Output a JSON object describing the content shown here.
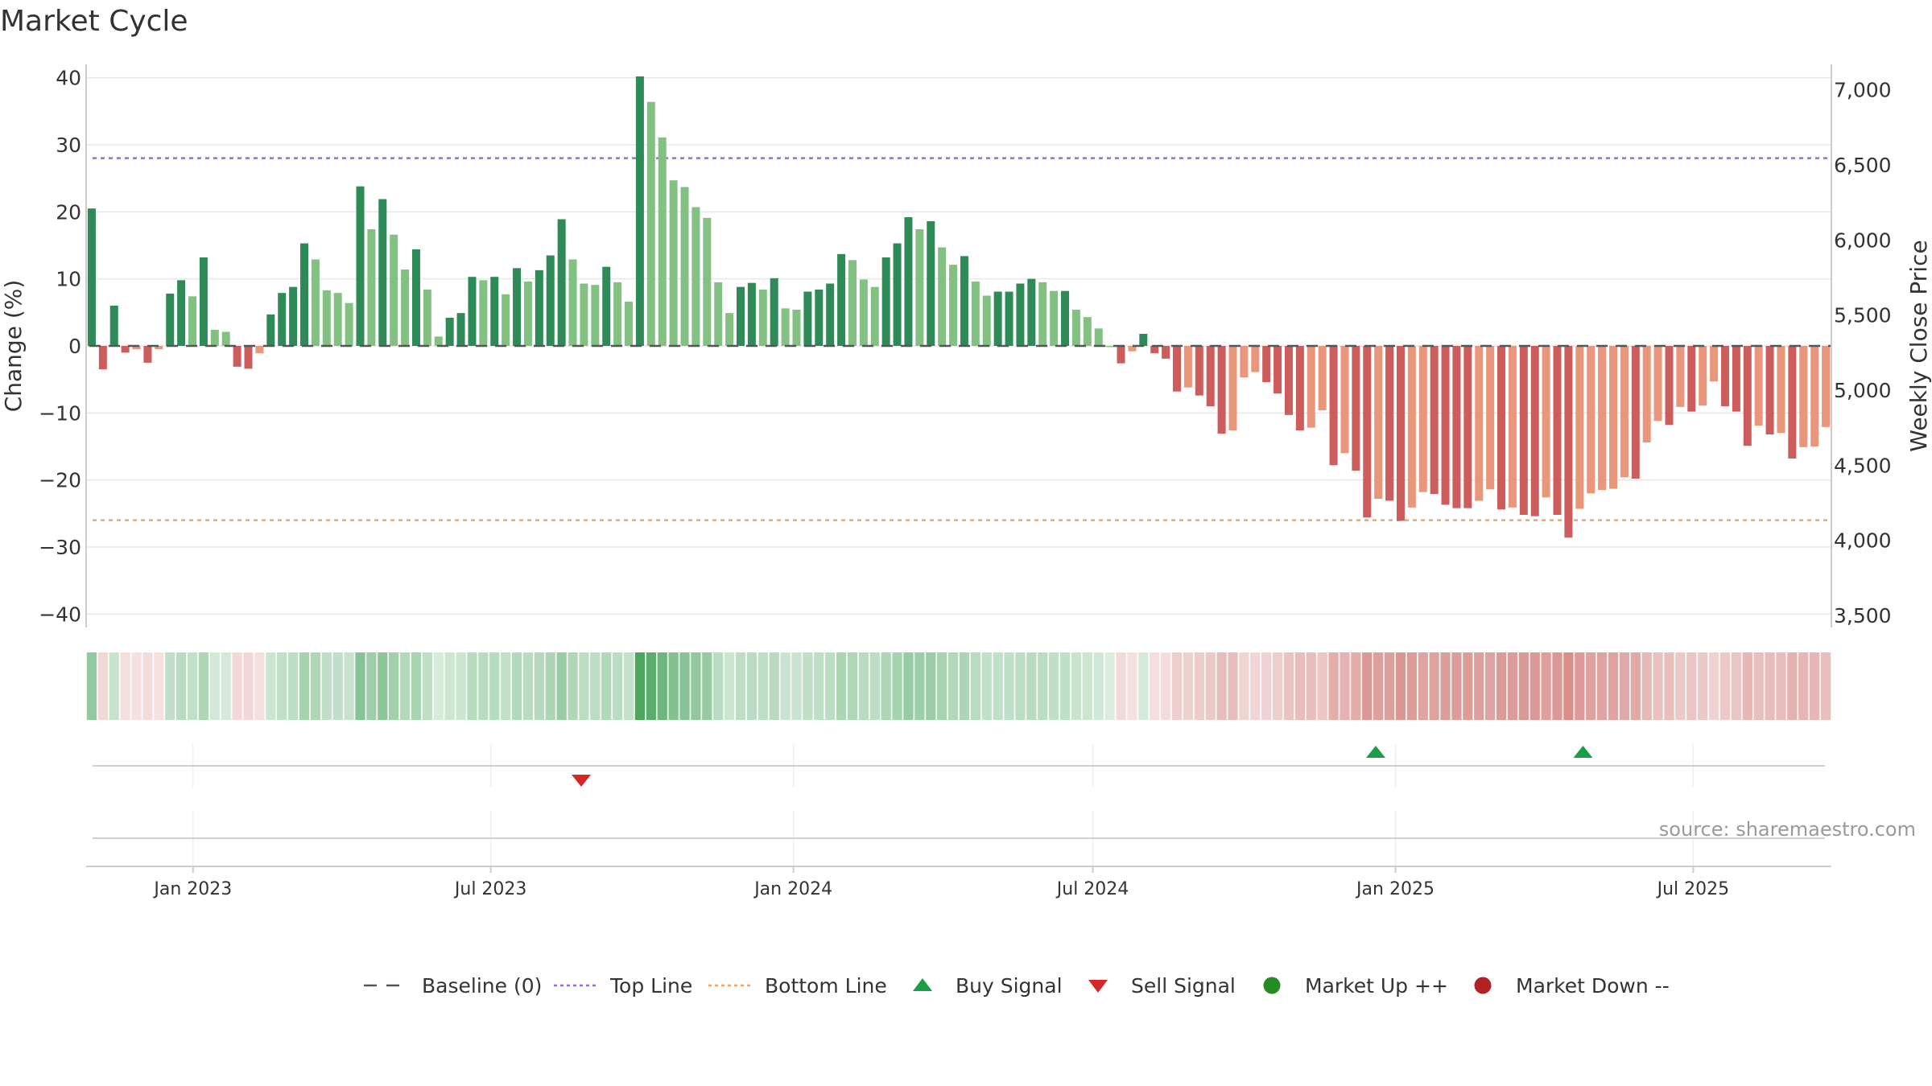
{
  "chart_data": {
    "type": "bar",
    "title": "Market Cycle",
    "ylabel_left": "Change (%)",
    "ylabel_right": "Weekly Close Price",
    "ylim_left": [
      -42,
      42
    ],
    "yticks_left": [
      "40",
      "30",
      "20",
      "10",
      "0",
      "−10",
      "−20",
      "−30",
      "−40"
    ],
    "ytick_values_left": [
      40,
      30,
      20,
      10,
      0,
      -10,
      -20,
      -30,
      -40
    ],
    "yticks_right": [
      "7,000",
      "6,500",
      "6,000",
      "5,500",
      "5,000",
      "4,500",
      "4,000",
      "3,500"
    ],
    "ytick_values_right": [
      7000,
      6500,
      6000,
      5500,
      5000,
      4500,
      4000,
      3500
    ],
    "ylim_right": [
      3420,
      7170
    ],
    "x_start": "2022-10-28",
    "x_end": "2025-09-23",
    "xticks": [
      {
        "label": "Jan 2023",
        "date": "2023-01-01"
      },
      {
        "label": "Jul 2023",
        "date": "2023-07-01"
      },
      {
        "label": "Jan 2024",
        "date": "2024-01-01"
      },
      {
        "label": "Jul 2024",
        "date": "2024-07-01"
      },
      {
        "label": "Jan 2025",
        "date": "2025-01-01"
      },
      {
        "label": "Jul 2025",
        "date": "2025-07-01"
      }
    ],
    "first_bar_date": "2022-10-28",
    "bar_interval_days": 7,
    "values": [
      20.5,
      -3.5,
      6,
      -1,
      -0.5,
      -2.5,
      -0.5,
      7.8,
      9.8,
      7.4,
      13.2,
      2.4,
      2.1,
      -3.1,
      -3.4,
      -1.1,
      4.7,
      7.9,
      8.8,
      15.3,
      12.9,
      8.3,
      7.9,
      6.4,
      23.8,
      17.4,
      21.9,
      16.6,
      11.4,
      14.4,
      8.4,
      1.4,
      4.2,
      4.9,
      10.3,
      9.8,
      10.3,
      7.7,
      11.6,
      9.6,
      11.3,
      13.5,
      18.9,
      12.9,
      9.3,
      9.1,
      11.8,
      9.5,
      6.6,
      40.2,
      36.4,
      31.1,
      24.7,
      23.7,
      20.7,
      19.1,
      9.5,
      4.9,
      8.8,
      9.4,
      8.4,
      10.1,
      5.6,
      5.4,
      8.1,
      8.4,
      9.3,
      13.7,
      12.8,
      9.9,
      8.8,
      13.2,
      15.3,
      19.2,
      17.4,
      18.6,
      14.7,
      12.1,
      13.4,
      9.6,
      7.5,
      8.1,
      8.1,
      9.3,
      10,
      9.5,
      8.2,
      8.2,
      5.4,
      4.3,
      2.6,
      0,
      -2.6,
      -0.8,
      1.8,
      -1.1,
      -1.9,
      -6.8,
      -6.2,
      -7.4,
      -9,
      -13.1,
      -12.6,
      -4.7,
      -3.9,
      -5.4,
      -7.1,
      -10.3,
      -12.6,
      -12.2,
      -9.6,
      -17.8,
      -16,
      -18.6,
      -25.6,
      -22.8,
      -23.1,
      -26.1,
      -24.1,
      -21.8,
      -22.1,
      -23.7,
      -24.2,
      -24.2,
      -23.1,
      -21.4,
      -24.4,
      -24.1,
      -25.2,
      -25.4,
      -22.6,
      -25.2,
      -28.6,
      -24.3,
      -22,
      -21.5,
      -21.3,
      -19.6,
      -19.8,
      -14.4,
      -11.2,
      -11.8,
      -9.1,
      -9.8,
      -8.9,
      -5.3,
      -9,
      -9.8,
      -14.9,
      -11.9,
      -13.2,
      -13,
      -16.8,
      -15.1,
      -15,
      -12.1
    ],
    "series": [
      {
        "name": "Baseline (0)",
        "value": 0,
        "color": "#555555",
        "style": "dashed"
      },
      {
        "name": "Top Line",
        "value": 28,
        "color": "#9c6ad6",
        "style": "dotted"
      },
      {
        "name": "Bottom Line",
        "value": -26,
        "color": "#f0a460",
        "style": "dotted"
      }
    ],
    "signals": {
      "buy": [
        {
          "date": "2024-12-20"
        },
        {
          "date": "2025-04-25"
        }
      ],
      "sell": [
        {
          "date": "2023-08-25"
        }
      ]
    },
    "colors": {
      "up_dark": "#2e8b57",
      "up_light": "#82c182",
      "down_dark": "#cd5c5c",
      "down_light": "#e9967a",
      "heat_pos": "#3a9c4f",
      "heat_neg": "#c65d58",
      "buy": "#1a9e45",
      "sell": "#d62728",
      "market_up": "#228b22",
      "market_down": "#b22222"
    },
    "legend": [
      {
        "label": "Baseline (0)",
        "kind": "dash",
        "color": "#555555"
      },
      {
        "label": "Top Line",
        "kind": "dotted",
        "color": "#9c6ad6"
      },
      {
        "label": "Bottom Line",
        "kind": "dotted",
        "color": "#f0a460"
      },
      {
        "label": "Buy Signal",
        "kind": "triangle-up",
        "color": "#1a9e45"
      },
      {
        "label": "Sell Signal",
        "kind": "triangle-down",
        "color": "#d62728"
      },
      {
        "label": "Market Up ++",
        "kind": "circle",
        "color": "#228b22"
      },
      {
        "label": "Market Down --",
        "kind": "circle",
        "color": "#b22222"
      }
    ],
    "legend_placement": "bottom-center",
    "source": "source: sharemaestro.com",
    "grid": true
  }
}
